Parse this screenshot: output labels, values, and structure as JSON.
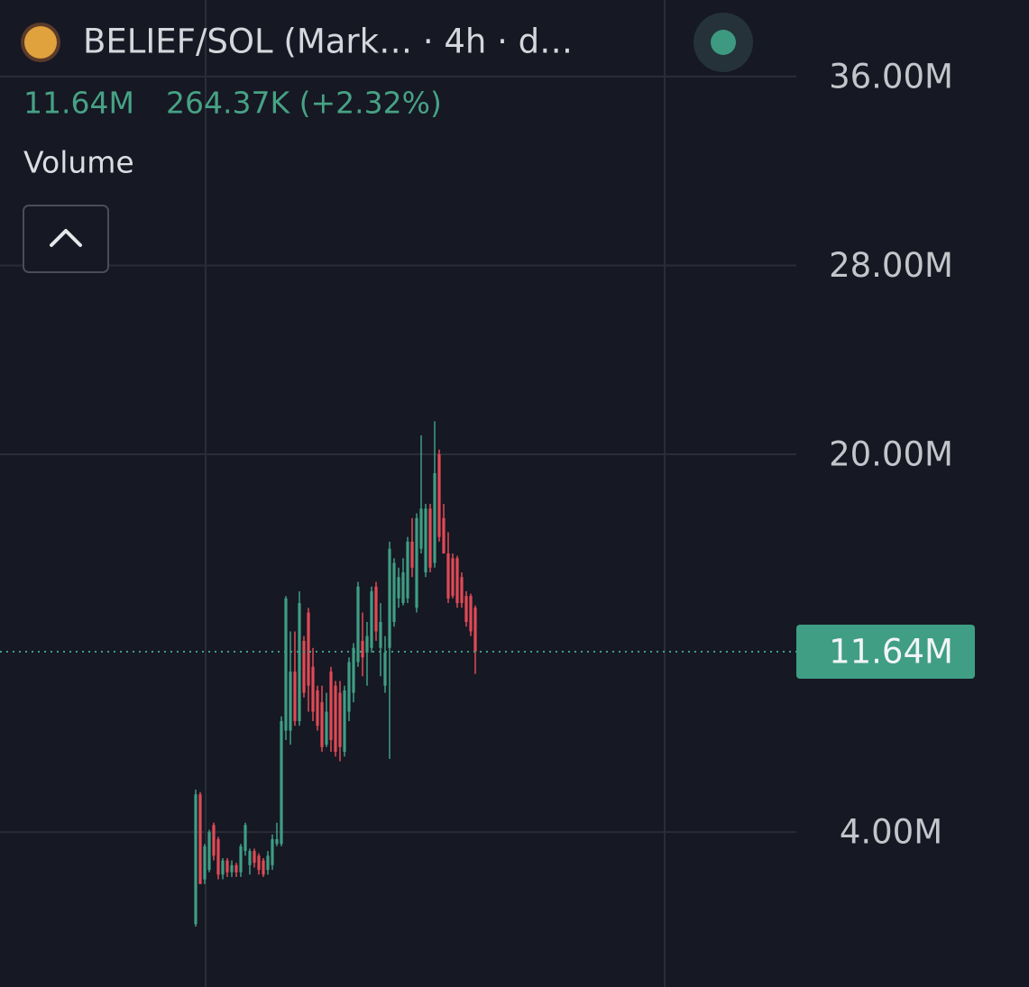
{
  "header": {
    "symbol": "BELIEF/SOL (Mark… · 4h · d…",
    "price": "11.64M",
    "change": "264.37K (+2.32%)",
    "indicator": "Volume"
  },
  "chart_data": {
    "type": "candlestick",
    "open": [
      0.1,
      5.6,
      2.0,
      2.4,
      4.3,
      3.7,
      2.2,
      2.8,
      2.3,
      2.6,
      2.3,
      3.2,
      2.6,
      3.2,
      3.0,
      2.8,
      2.4,
      2.6,
      3.5,
      3.5,
      8.3,
      8.3,
      10.8,
      8.7,
      12.1,
      13.3,
      11.0,
      10.0,
      9.5,
      7.7,
      10.8,
      10.2,
      9.9,
      7.4,
      9.1,
      9.9,
      11.2,
      12.1,
      11.6,
      11.8,
      14.4,
      11.8,
      10.2,
      11.8,
      12.9,
      13.9,
      13.7,
      13.9,
      16.3,
      13.5,
      16.0,
      15.0,
      17.7,
      15.4,
      20.0,
      17.3,
      15.8,
      15.6,
      15.6,
      14.8,
      14.0,
      14.0,
      13.5
    ],
    "high": [
      5.8,
      5.7,
      3.5,
      4.1,
      4.4,
      3.8,
      2.9,
      2.9,
      2.8,
      2.7,
      3.5,
      4.4,
      3.3,
      3.3,
      3.1,
      2.9,
      3.2,
      3.9,
      4.4,
      8.9,
      14.0,
      12.5,
      12.5,
      14.2,
      12.3,
      13.5,
      11.8,
      10.2,
      10.2,
      9.9,
      11.0,
      10.4,
      10.4,
      10.2,
      11.4,
      12.0,
      14.6,
      13.3,
      12.9,
      14.4,
      14.6,
      13.7,
      12.3,
      16.3,
      15.6,
      15.2,
      15.6,
      16.5,
      17.3,
      17.5,
      20.8,
      17.9,
      17.9,
      21.4,
      20.2,
      17.9,
      16.7,
      15.8,
      15.7,
      15.0,
      14.2,
      14.1,
      13.6
    ],
    "low": [
      0,
      1.8,
      1.8,
      2.3,
      2.8,
      2.0,
      2.0,
      2.1,
      2.1,
      2.1,
      2.1,
      3.0,
      2.2,
      2.5,
      2.2,
      2.1,
      2.2,
      2.4,
      3.4,
      3.4,
      7.9,
      7.7,
      8.5,
      8.5,
      9.7,
      9.1,
      8.7,
      8.3,
      7.4,
      7.6,
      7.4,
      7.2,
      7.0,
      7.2,
      8.7,
      9.5,
      11.0,
      10.6,
      10.2,
      11.6,
      12.1,
      10.6,
      9.9,
      7.1,
      12.7,
      13.5,
      13.6,
      13.7,
      14.8,
      13.3,
      15.8,
      14.8,
      15.0,
      15.2,
      16.3,
      15.8,
      13.7,
      13.9,
      13.5,
      13.5,
      12.7,
      12.3,
      10.7
    ],
    "close": [
      5.6,
      1.8,
      3.4,
      4.0,
      3.0,
      2.2,
      2.8,
      2.3,
      2.6,
      2.3,
      3.4,
      4.3,
      3.2,
      2.7,
      2.4,
      2.2,
      3.0,
      3.7,
      3.7,
      8.7,
      13.9,
      10.8,
      8.7,
      13.7,
      9.9,
      10.2,
      9.1,
      8.5,
      7.6,
      9.1,
      7.9,
      7.4,
      7.6,
      10.0,
      11.2,
      11.8,
      14.4,
      11.4,
      12.3,
      14.2,
      12.5,
      12.9,
      11.6,
      16.0,
      15.4,
      14.8,
      15.0,
      16.3,
      15.2,
      17.3,
      17.7,
      17.7,
      15.2,
      19.2,
      16.5,
      15.8,
      13.9,
      14.0,
      13.7,
      13.7,
      12.9,
      12.5,
      11.64
    ],
    "up_color": "#3f9e84",
    "down_color": "#e04a55",
    "ylim": [
      -2.56,
      39.24
    ],
    "yticks": [
      {
        "value": 4,
        "label": "4.00M"
      },
      {
        "value": 20,
        "label": "20.00M"
      },
      {
        "value": 28,
        "label": "28.00M"
      },
      {
        "value": 36,
        "label": "36.00M"
      }
    ],
    "grid": true,
    "last_price": {
      "value": 11.64,
      "label": "11.64M"
    }
  }
}
